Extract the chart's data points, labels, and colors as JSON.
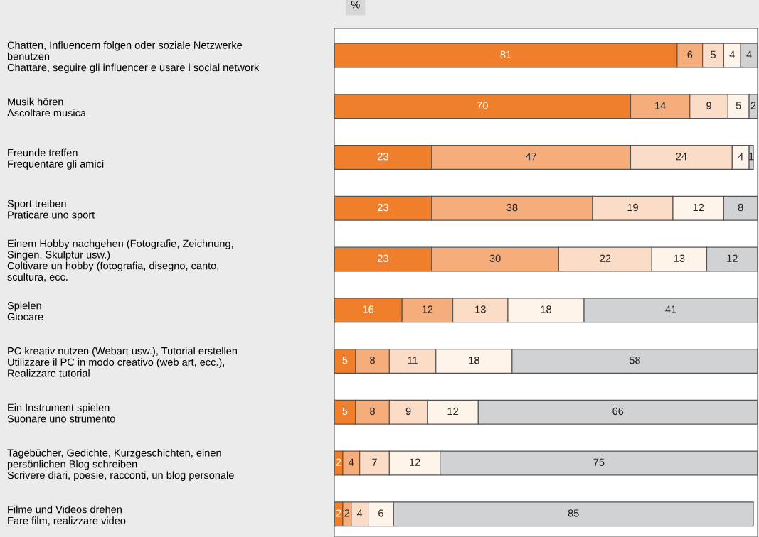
{
  "chart_data": {
    "type": "bar",
    "orientation": "horizontal",
    "stacked": true,
    "data_labels": true,
    "xlabel": "%",
    "xlim": [
      0,
      100
    ],
    "tick_labels": "y",
    "grid": false,
    "categories": [
      "Chatten, Influencern folgen oder soziale Netzwerke\nbenutzen\nChattare, seguire gli influencer e usare i social network",
      "Musik hören\nAscoltare musica",
      "Freunde treffen\nFrequentare gli amici",
      "Sport treiben\nPraticare uno sport",
      "Einem Hobby nachgehen (Fotografie, Zeichnung,\nSingen, Skulptur usw.)\nColtivare un hobby (fotografia, disegno, canto,\nscultura, ecc.",
      "Spielen\nGiocare",
      "PC kreativ nutzen (Webart usw.), Tutorial erstellen\nUtilizzare il PC in modo creativo (web art, ecc.),\nRealizzare tutorial",
      "Ein Instrument spielen\nSuonare uno strumento",
      "Tagebücher, Gedichte, Kurzgeschichten, einen\npersönlichen Blog schreiben\nScrivere diari, poesie, racconti, un blog personale",
      "Filme und Videos drehen\nFare film, realizzare video"
    ],
    "series": [
      {
        "color": "#f07f2b",
        "values": [
          81,
          70,
          23,
          23,
          23,
          16,
          5,
          5,
          2,
          2
        ]
      },
      {
        "color": "#f6ad7c",
        "values": [
          6,
          14,
          47,
          38,
          30,
          12,
          8,
          8,
          4,
          2
        ]
      },
      {
        "color": "#fbdcc6",
        "values": [
          5,
          9,
          24,
          19,
          22,
          13,
          11,
          9,
          7,
          4
        ]
      },
      {
        "color": "#fff4ea",
        "values": [
          4,
          5,
          4,
          12,
          13,
          18,
          18,
          12,
          12,
          6
        ]
      },
      {
        "color": "#d1d2d4",
        "values": [
          4,
          2,
          1,
          8,
          12,
          41,
          58,
          66,
          75,
          85
        ]
      }
    ]
  }
}
